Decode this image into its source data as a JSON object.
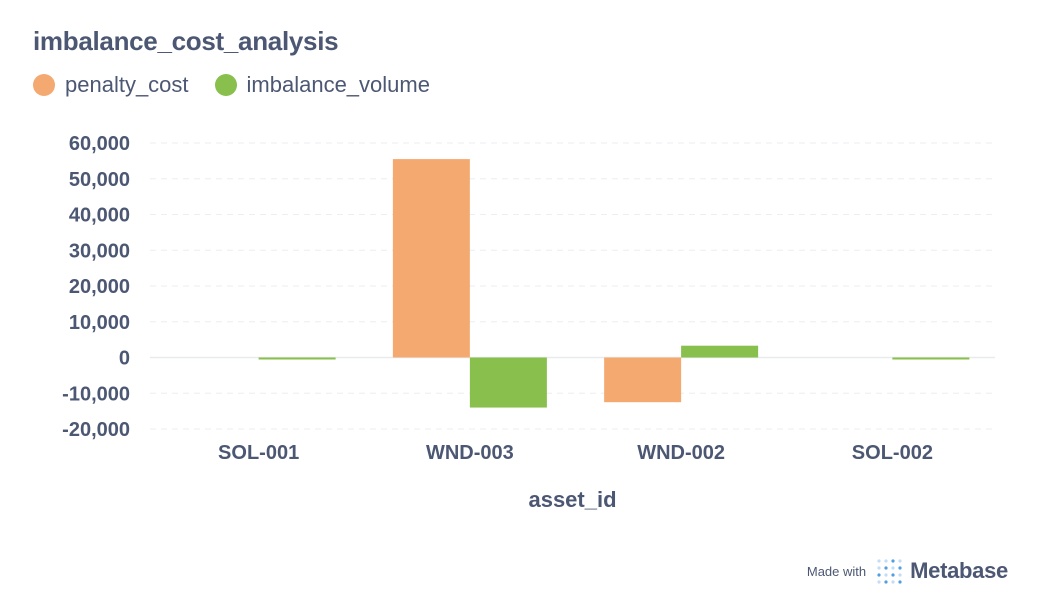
{
  "chart_data": {
    "type": "bar",
    "title": "imbalance_cost_analysis",
    "xlabel": "asset_id",
    "ylabel": "",
    "categories": [
      "SOL-001",
      "WND-003",
      "WND-002",
      "SOL-002"
    ],
    "series": [
      {
        "name": "penalty_cost",
        "color": "#f4a971",
        "values": [
          0,
          55500,
          -12500,
          0
        ]
      },
      {
        "name": "imbalance_volume",
        "color": "#88bf4d",
        "values": [
          -500,
          -14000,
          3300,
          -500
        ]
      }
    ],
    "ylim": [
      -20000,
      60000
    ],
    "yticks": [
      "60,000",
      "50,000",
      "40,000",
      "30,000",
      "20,000",
      "10,000",
      "0",
      "-10,000",
      "-20,000"
    ],
    "ytick_values": [
      60000,
      50000,
      40000,
      30000,
      20000,
      10000,
      0,
      -10000,
      -20000
    ],
    "grid": true,
    "legend_position": "top-left"
  },
  "footer": {
    "made_with": "Made with",
    "brand": "Metabase",
    "logo_icon": "metabase-logo-icon"
  }
}
